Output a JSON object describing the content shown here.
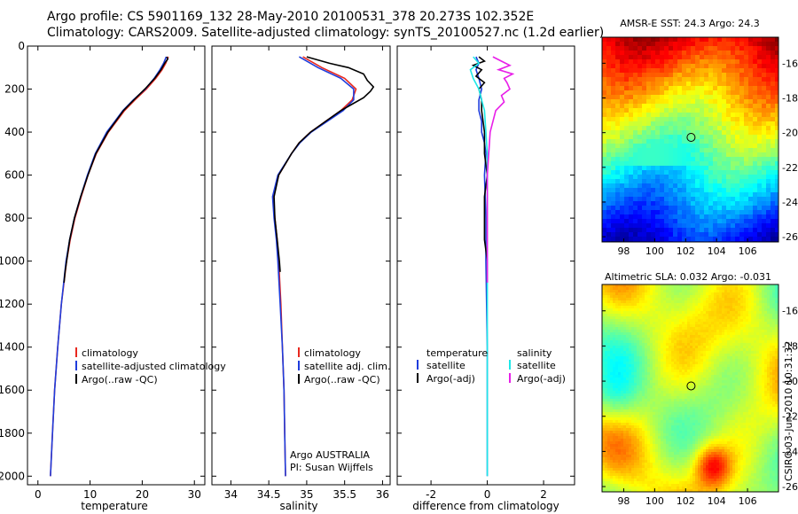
{
  "header": {
    "line1": "Argo profile: CS 5901169_132 28-May-2010 20100531_378 20.273S 102.352E",
    "line2": "Climatology: CARS2009. Satellite-adjusted climatology: synTS_20100527.nc (1.2d earlier)"
  },
  "side_label": "CSIRO 03-Jun-2010 10:31:32",
  "colors": {
    "climatology": "#e8281e",
    "satellite": "#1e3cdc",
    "argo": "#000000",
    "cyan": "#1ee8e8",
    "magenta": "#e81ee8"
  },
  "chart_data": [
    {
      "type": "line",
      "name": "temperature-profile",
      "xlabel": "temperature",
      "xlim": [
        -2,
        32
      ],
      "ylim": [
        2040,
        0
      ],
      "xticks": [
        0,
        10,
        20,
        30
      ],
      "yticks": [
        0,
        200,
        400,
        600,
        800,
        1000,
        1200,
        1400,
        1600,
        1800,
        2000
      ],
      "legend": [
        "climatology",
        "satellite-adjusted climatology",
        "Argo(..raw -QC)"
      ],
      "series": [
        {
          "name": "climatology",
          "color": "#e8281e",
          "depth": [
            50,
            80,
            110,
            150,
            200,
            250,
            300,
            400,
            500,
            600,
            700,
            800,
            900,
            1000,
            1200,
            1400,
            1600,
            1800,
            2000
          ],
          "values": [
            25,
            24.5,
            23.8,
            22.6,
            20.8,
            18.6,
            16.6,
            13.5,
            11.2,
            9.6,
            8.3,
            7.1,
            6.2,
            5.5,
            4.5,
            3.8,
            3.2,
            2.8,
            2.4
          ]
        },
        {
          "name": "satellite-adjusted climatology",
          "color": "#1e3cdc",
          "depth": [
            50,
            80,
            110,
            150,
            200,
            250,
            300,
            400,
            500,
            600,
            700,
            800,
            900,
            1000,
            1200,
            1400,
            1600,
            1800,
            2000
          ],
          "values": [
            24.6,
            24.1,
            23.4,
            22.3,
            20.6,
            18.3,
            16.3,
            13.2,
            11.0,
            9.5,
            8.2,
            7.0,
            6.1,
            5.4,
            4.5,
            3.8,
            3.2,
            2.8,
            2.4
          ]
        },
        {
          "name": "Argo(..raw -QC)",
          "color": "#000000",
          "depth": [
            50,
            60,
            80,
            110,
            150,
            200,
            250,
            300,
            400,
            500,
            600,
            700,
            800,
            900,
            1000,
            1050,
            1100
          ],
          "values": [
            24.7,
            24.9,
            24.3,
            23.6,
            22.4,
            20.5,
            18.4,
            16.4,
            13.4,
            11.1,
            9.6,
            8.2,
            7.0,
            6.1,
            5.5,
            5.2,
            5.0
          ]
        }
      ]
    },
    {
      "type": "line",
      "name": "salinity-profile",
      "xlabel": "salinity",
      "xlim": [
        33.75,
        36.1
      ],
      "ylim": [
        2040,
        0
      ],
      "xticks": [
        34,
        34.5,
        35,
        35.5,
        36
      ],
      "legend": [
        "climatology",
        "satellite adj. clim.",
        "Argo(..raw -QC)"
      ],
      "annotation": [
        "Argo AUSTRALIA",
        "PI: Susan Wijffels"
      ],
      "series": [
        {
          "name": "climatology",
          "color": "#e8281e",
          "depth": [
            50,
            100,
            150,
            200,
            250,
            300,
            350,
            400,
            450,
            500,
            600,
            700,
            800,
            900,
            1000,
            1200,
            1400,
            1600,
            1800,
            2000
          ],
          "values": [
            34.95,
            35.2,
            35.5,
            35.65,
            35.6,
            35.45,
            35.25,
            35.05,
            34.9,
            34.8,
            34.63,
            34.56,
            34.58,
            34.61,
            34.63,
            34.66,
            34.68,
            34.7,
            34.71,
            34.72
          ]
        },
        {
          "name": "satellite adj. clim.",
          "color": "#1e3cdc",
          "depth": [
            50,
            100,
            150,
            200,
            250,
            300,
            350,
            400,
            450,
            500,
            600,
            700,
            800,
            900,
            1000,
            1200,
            1400,
            1600,
            1800,
            2000
          ],
          "values": [
            34.9,
            35.15,
            35.45,
            35.62,
            35.62,
            35.48,
            35.27,
            35.06,
            34.91,
            34.8,
            34.62,
            34.55,
            34.57,
            34.6,
            34.62,
            34.65,
            34.68,
            34.7,
            34.71,
            34.72
          ]
        },
        {
          "name": "Argo(..raw -QC)",
          "color": "#000000",
          "depth": [
            50,
            80,
            100,
            130,
            160,
            190,
            210,
            240,
            270,
            300,
            350,
            400,
            450,
            500,
            600,
            700,
            800,
            900,
            1000,
            1050
          ],
          "values": [
            35.0,
            35.3,
            35.55,
            35.75,
            35.8,
            35.88,
            35.84,
            35.75,
            35.6,
            35.45,
            35.25,
            35.05,
            34.9,
            34.8,
            34.63,
            34.57,
            34.58,
            34.61,
            34.64,
            34.65
          ]
        }
      ]
    },
    {
      "type": "line",
      "name": "difference-profile",
      "xlabel": "difference from climatology",
      "xlim": [
        -3.2,
        3.1
      ],
      "ylim": [
        2040,
        0
      ],
      "xticks": [
        -2,
        0,
        2
      ],
      "legend_left_title": "temperature",
      "legend_right_title": "salinity",
      "legend_left": [
        "satellite",
        "Argo(-adj)"
      ],
      "legend_right": [
        "satellite",
        "Argo(-adj)"
      ],
      "series": [
        {
          "name": "temperature satellite",
          "color": "#1e3cdc",
          "depth": [
            50,
            80,
            110,
            150,
            200,
            250,
            300,
            350,
            400,
            450,
            500,
            600,
            800,
            1000,
            1400,
            1800,
            2000
          ],
          "values": [
            -0.4,
            -0.3,
            -0.4,
            -0.3,
            -0.2,
            -0.3,
            -0.3,
            -0.2,
            -0.2,
            -0.1,
            -0.05,
            -0.1,
            -0.05,
            -0.05,
            0,
            0,
            0
          ]
        },
        {
          "name": "temperature Argo(-adj)",
          "color": "#000000",
          "depth": [
            50,
            70,
            90,
            110,
            140,
            170,
            200,
            250,
            300,
            400,
            500,
            600,
            700,
            800,
            900,
            1000,
            1100
          ],
          "values": [
            -0.3,
            -0.1,
            -0.5,
            -0.2,
            -0.4,
            -0.1,
            -0.3,
            -0.2,
            -0.2,
            -0.1,
            -0.1,
            0,
            -0.1,
            -0.1,
            -0.1,
            0,
            0
          ]
        },
        {
          "name": "salinity satellite",
          "color": "#1ee8e8",
          "depth": [
            50,
            80,
            110,
            150,
            200,
            250,
            300,
            400,
            500,
            600,
            800,
            1000,
            1400,
            1800,
            2000
          ],
          "values": [
            -0.5,
            -0.3,
            -0.6,
            -0.5,
            -0.3,
            -0.2,
            -0.1,
            -0.05,
            0,
            0,
            0,
            0,
            0,
            0,
            0
          ]
        },
        {
          "name": "salinity Argo(-adj)",
          "color": "#e81ee8",
          "depth": [
            50,
            70,
            90,
            110,
            130,
            150,
            170,
            200,
            230,
            260,
            300,
            400,
            500,
            600,
            800,
            1000,
            1100
          ],
          "values": [
            0.2,
            0.5,
            0.8,
            0.4,
            0.9,
            0.6,
            0.7,
            0.8,
            0.5,
            0.6,
            0.3,
            0.1,
            0.05,
            0,
            0,
            0,
            0
          ]
        }
      ]
    },
    {
      "type": "heatmap",
      "name": "sst-map",
      "title": "AMSR-E SST: 24.3 Argo: 24.3",
      "xlim": [
        96.6,
        108.0
      ],
      "ylim": [
        -26.3,
        -14.5
      ],
      "xticks": [
        98,
        100,
        102,
        104,
        106
      ],
      "yticks": [
        -16,
        -18,
        -20,
        -22,
        -24,
        -26
      ],
      "marker": [
        102.352,
        -20.273
      ]
    },
    {
      "type": "heatmap",
      "name": "sla-map",
      "title": "Altimetric SLA: 0.032 Argo: -0.031",
      "xlim": [
        96.6,
        108.0
      ],
      "ylim": [
        -26.3,
        -14.5
      ],
      "xticks": [
        98,
        100,
        102,
        104,
        106
      ],
      "yticks": [
        -16,
        -18,
        -20,
        -22,
        -24,
        -26
      ],
      "marker": [
        102.352,
        -20.273
      ]
    }
  ]
}
